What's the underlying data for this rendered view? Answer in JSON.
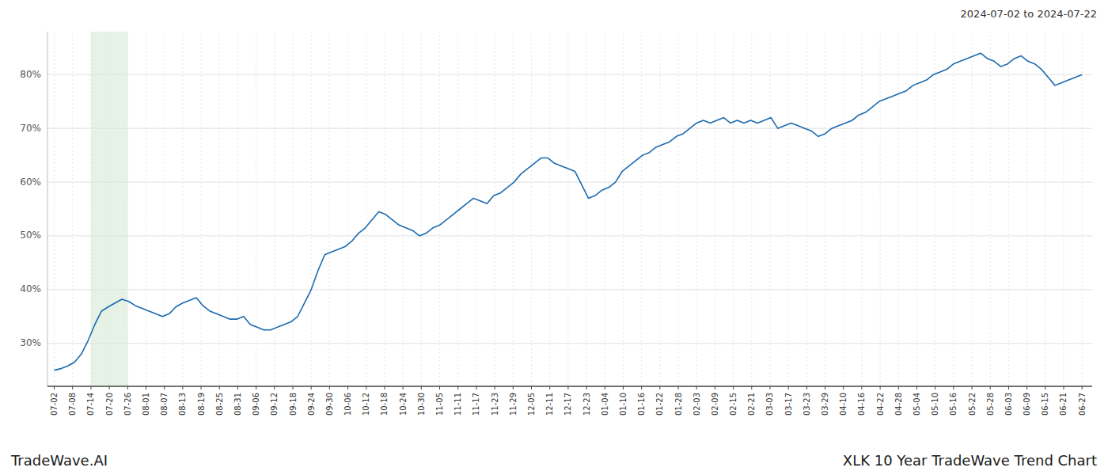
{
  "chart_data": {
    "type": "line",
    "title": "XLK 10 Year TradeWave Trend Chart",
    "subtitle": "2024-07-02 to 2024-07-22",
    "annotations": [
      "TradeWave.AI"
    ],
    "color": "#1b6ab0",
    "grid": true,
    "highlight": {
      "from": "07-14",
      "to": "07-26",
      "color": "#d6ead6"
    },
    "ylim": [
      22,
      88
    ],
    "yticks": [
      {
        "value": 30,
        "label": "30%"
      },
      {
        "value": 40,
        "label": "40%"
      },
      {
        "value": 50,
        "label": "50%"
      },
      {
        "value": 60,
        "label": "60%"
      },
      {
        "value": 70,
        "label": "70%"
      },
      {
        "value": 80,
        "label": "80%"
      }
    ],
    "xticks": [
      "07-02",
      "07-08",
      "07-14",
      "07-20",
      "07-26",
      "08-01",
      "08-07",
      "08-13",
      "08-19",
      "08-25",
      "08-31",
      "09-06",
      "09-12",
      "09-18",
      "09-24",
      "09-30",
      "10-06",
      "10-12",
      "10-18",
      "10-24",
      "10-30",
      "11-05",
      "11-11",
      "11-17",
      "11-23",
      "11-29",
      "12-05",
      "12-11",
      "12-17",
      "12-23",
      "01-04",
      "01-10",
      "01-16",
      "01-22",
      "01-28",
      "02-03",
      "02-09",
      "02-15",
      "02-21",
      "03-03",
      "03-17",
      "03-23",
      "03-29",
      "04-10",
      "04-16",
      "04-22",
      "04-28",
      "05-04",
      "05-10",
      "05-16",
      "05-22",
      "05-28",
      "06-03",
      "06-09",
      "06-15",
      "06-21",
      "06-27"
    ],
    "values": [
      25.0,
      25.3,
      25.8,
      26.5,
      28.0,
      30.5,
      33.5,
      36.0,
      36.8,
      37.5,
      38.2,
      37.8,
      37.0,
      36.5,
      36.0,
      35.5,
      35.0,
      35.5,
      36.8,
      37.5,
      38.0,
      38.5,
      37.0,
      36.0,
      35.5,
      35.0,
      34.5,
      34.5,
      35.0,
      33.5,
      33.0,
      32.5,
      32.5,
      33.0,
      33.5,
      34.0,
      35.0,
      37.5,
      40.0,
      43.5,
      46.5,
      47.0,
      47.5,
      48.0,
      49.0,
      50.5,
      51.5,
      53.0,
      54.5,
      54.0,
      53.0,
      52.0,
      51.5,
      51.0,
      50.0,
      50.5,
      51.5,
      52.0,
      53.0,
      54.0,
      55.0,
      56.0,
      57.0,
      56.5,
      56.0,
      57.5,
      58.0,
      59.0,
      60.0,
      61.5,
      62.5,
      63.5,
      64.5,
      64.5,
      63.5,
      63.0,
      62.5,
      62.0,
      59.5,
      57.0,
      57.5,
      58.5,
      59.0,
      60.0,
      62.0,
      63.0,
      64.0,
      65.0,
      65.5,
      66.5,
      67.0,
      67.5,
      68.5,
      69.0,
      70.0,
      71.0,
      71.5,
      71.0,
      71.5,
      72.0,
      71.0,
      71.5,
      71.0,
      71.5,
      71.0,
      71.5,
      72.0,
      70.0,
      70.5,
      71.0,
      70.5,
      70.0,
      69.5,
      68.5,
      69.0,
      70.0,
      70.5,
      71.0,
      71.5,
      72.5,
      73.0,
      74.0,
      75.0,
      75.5,
      76.0,
      76.5,
      77.0,
      78.0,
      78.5,
      79.0,
      80.0,
      80.5,
      81.0,
      82.0,
      82.5,
      83.0,
      83.5,
      84.0,
      83.0,
      82.5,
      81.5,
      82.0,
      83.0,
      83.5,
      82.5,
      82.0,
      81.0,
      79.5,
      78.0,
      78.5,
      79.0,
      79.5,
      80.0
    ]
  }
}
